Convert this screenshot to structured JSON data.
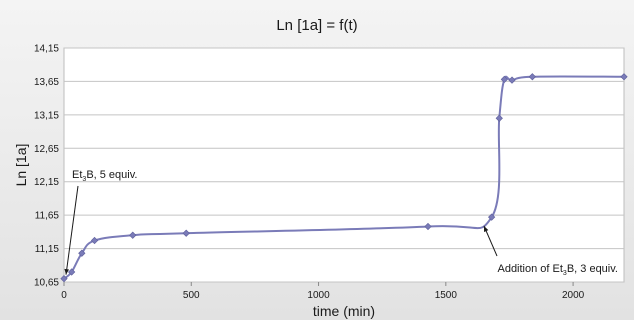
{
  "chart_data": {
    "type": "line",
    "title": "Ln [1a] = f(t)",
    "xlabel": "time (min)",
    "ylabel": "Ln [1a]",
    "xlim": [
      0,
      2200
    ],
    "ylim": [
      10.65,
      14.15
    ],
    "xticks": [
      "0",
      "500",
      "1000",
      "1500",
      "2000"
    ],
    "xtick_values": [
      0,
      500,
      1000,
      1500,
      2000
    ],
    "yticks": [
      "10,65",
      "11,15",
      "11,65",
      "12,15",
      "12,65",
      "13,15",
      "13,65",
      "14,15"
    ],
    "ytick_values": [
      10.65,
      11.15,
      11.65,
      12.15,
      12.65,
      13.15,
      13.65,
      14.15
    ],
    "grid": "horizontal",
    "series": [
      {
        "color": "#7a7bb8",
        "x": [
          0,
          30,
          70,
          120,
          270,
          480,
          1430,
          1680,
          1710,
          1730,
          1760,
          1840,
          2200
        ],
        "y": [
          10.7,
          10.8,
          11.08,
          11.27,
          11.35,
          11.38,
          11.48,
          11.62,
          13.1,
          13.68,
          13.67,
          13.72,
          13.72
        ]
      }
    ],
    "annotations": [
      {
        "id": "a1",
        "text_main": "Et",
        "text_sub": "3",
        "text_rest": "B, 5 equiv.",
        "x": 0,
        "y": 10.7
      },
      {
        "id": "a2",
        "text_main": "Addition of Et",
        "text_sub": "3",
        "text_rest": "B, 3 equiv.",
        "x": 1670,
        "y": 11.55
      }
    ]
  }
}
